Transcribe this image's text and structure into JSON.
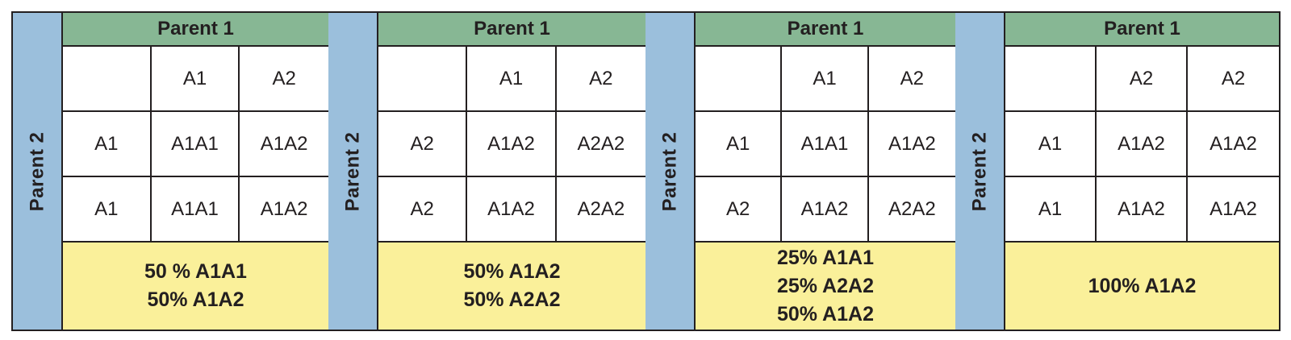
{
  "colors": {
    "parent1_header": "#87b794",
    "parent2_bar": "#9bbfdc",
    "result_box": "#faf09a",
    "border": "#231f20"
  },
  "crosses": [
    {
      "parent1_label": "Parent 1",
      "parent2_label": "Parent 2",
      "grid": [
        [
          "",
          "A1",
          "A2"
        ],
        [
          "A1",
          "A1A1",
          "A1A2"
        ],
        [
          "A1",
          "A1A1",
          "A1A2"
        ]
      ],
      "result": [
        "50 % A1A1",
        "50% A1A2"
      ]
    },
    {
      "parent1_label": "Parent 1",
      "parent2_label": "Parent 2",
      "grid": [
        [
          "",
          "A1",
          "A2"
        ],
        [
          "A2",
          "A1A2",
          "A2A2"
        ],
        [
          "A2",
          "A1A2",
          "A2A2"
        ]
      ],
      "result": [
        "50% A1A2",
        "50% A2A2"
      ]
    },
    {
      "parent1_label": "Parent 1",
      "parent2_label": "Parent 2",
      "grid": [
        [
          "",
          "A1",
          "A2"
        ],
        [
          "A1",
          "A1A1",
          "A1A2"
        ],
        [
          "A2",
          "A1A2",
          "A2A2"
        ]
      ],
      "result": [
        "25% A1A1",
        "25% A2A2",
        "50% A1A2"
      ]
    },
    {
      "parent1_label": "Parent 1",
      "parent2_label": "Parent 2",
      "grid": [
        [
          "",
          "A2",
          "A2"
        ],
        [
          "A1",
          "A1A2",
          "A1A2"
        ],
        [
          "A1",
          "A1A2",
          "A1A2"
        ]
      ],
      "result": [
        "100% A1A2"
      ]
    }
  ]
}
